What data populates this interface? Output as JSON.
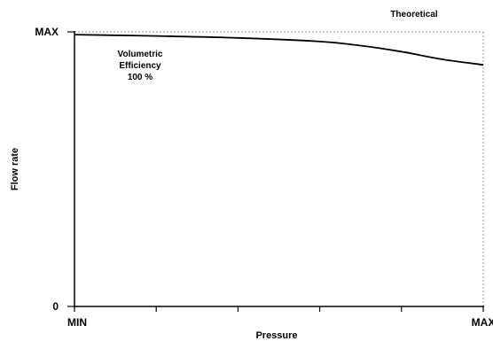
{
  "chart_data": {
    "type": "line",
    "title": "",
    "xlabel": "Pressure",
    "ylabel": "Flow rate",
    "x_tick_labels": [
      "MIN",
      "",
      "",
      "",
      "",
      "MAX"
    ],
    "y_tick_labels": [
      "0",
      "MAX"
    ],
    "xlim": [
      0,
      1
    ],
    "ylim": [
      0,
      1
    ],
    "grid": false,
    "series": [
      {
        "name": "",
        "x": [
          0,
          0.2,
          0.4,
          0.6,
          0.7,
          0.8,
          0.9,
          1.0
        ],
        "y": [
          0.99,
          0.985,
          0.978,
          0.965,
          0.95,
          0.928,
          0.9,
          0.88
        ]
      }
    ],
    "reference_line": {
      "label": "Theoretical",
      "y": 1.0
    },
    "annotations": {
      "line1": "Volumetric",
      "line2": "Efficiency",
      "line3": "100 %"
    },
    "colors": {
      "curve": "#000000",
      "axis": "#000000",
      "reference": "#999999"
    }
  }
}
